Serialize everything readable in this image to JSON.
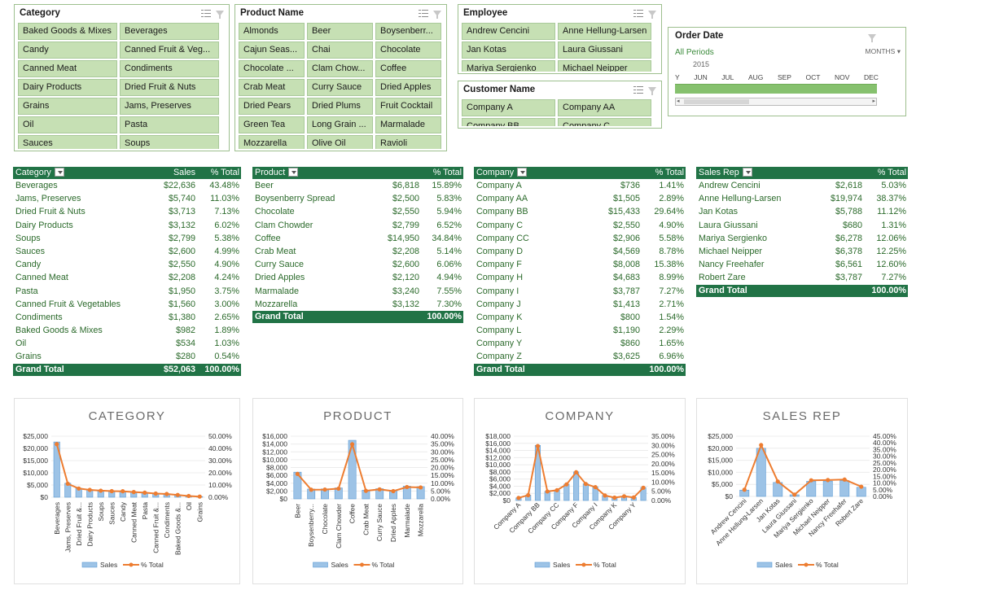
{
  "slicers": {
    "category": {
      "title": "Category",
      "items": [
        "Baked Goods & Mixes",
        "Beverages",
        "Candy",
        "Canned Fruit & Veg...",
        "Canned Meat",
        "Condiments",
        "Dairy Products",
        "Dried Fruit & Nuts",
        "Grains",
        "Jams, Preserves",
        "Oil",
        "Pasta",
        "Sauces",
        "Soups"
      ]
    },
    "product": {
      "title": "Product Name",
      "items": [
        "Almonds",
        "Beer",
        "Boysenberr...",
        "Cajun Seas...",
        "Chai",
        "Chocolate",
        "Chocolate ...",
        "Clam Chow...",
        "Coffee",
        "Crab Meat",
        "Curry Sauce",
        "Dried Apples",
        "Dried Pears",
        "Dried Plums",
        "Fruit Cocktail",
        "Green Tea",
        "Long Grain ...",
        "Marmalade",
        "Mozzarella",
        "Olive Oil",
        "Ravioli"
      ]
    },
    "employee": {
      "title": "Employee",
      "items": [
        "Andrew Cencini",
        "Anne Hellung-Larsen",
        "Jan Kotas",
        "Laura Giussani",
        "Mariya Sergienko",
        "Michael Neipper"
      ]
    },
    "customer": {
      "title": "Customer Name",
      "items": [
        "Company A",
        "Company AA",
        "Company BB",
        "Company C"
      ]
    }
  },
  "timeline": {
    "title": "Order Date",
    "all_periods": "All Periods",
    "level": "MONTHS",
    "year": "2015",
    "months": [
      "Y",
      "JUN",
      "JUL",
      "AUG",
      "SEP",
      "OCT",
      "NOV",
      "DEC"
    ]
  },
  "pivots": {
    "category": {
      "headers": [
        "Category",
        "Sales",
        "% Total"
      ],
      "rows": [
        [
          "Beverages",
          "$22,636",
          "43.48%"
        ],
        [
          "Jams, Preserves",
          "$5,740",
          "11.03%"
        ],
        [
          "Dried Fruit & Nuts",
          "$3,713",
          "7.13%"
        ],
        [
          "Dairy Products",
          "$3,132",
          "6.02%"
        ],
        [
          "Soups",
          "$2,799",
          "5.38%"
        ],
        [
          "Sauces",
          "$2,600",
          "4.99%"
        ],
        [
          "Candy",
          "$2,550",
          "4.90%"
        ],
        [
          "Canned Meat",
          "$2,208",
          "4.24%"
        ],
        [
          "Pasta",
          "$1,950",
          "3.75%"
        ],
        [
          "Canned Fruit & Vegetables",
          "$1,560",
          "3.00%"
        ],
        [
          "Condiments",
          "$1,380",
          "2.65%"
        ],
        [
          "Baked Goods & Mixes",
          "$982",
          "1.89%"
        ],
        [
          "Oil",
          "$534",
          "1.03%"
        ],
        [
          "Grains",
          "$280",
          "0.54%"
        ]
      ],
      "total": [
        "Grand Total",
        "$52,063",
        "100.00%"
      ]
    },
    "product": {
      "headers": [
        "Product",
        "",
        "% Total"
      ],
      "rows": [
        [
          "Beer",
          "$6,818",
          "15.89%"
        ],
        [
          "Boysenberry Spread",
          "$2,500",
          "5.83%"
        ],
        [
          "Chocolate",
          "$2,550",
          "5.94%"
        ],
        [
          "Clam Chowder",
          "$2,799",
          "6.52%"
        ],
        [
          "Coffee",
          "$14,950",
          "34.84%"
        ],
        [
          "Crab Meat",
          "$2,208",
          "5.14%"
        ],
        [
          "Curry Sauce",
          "$2,600",
          "6.06%"
        ],
        [
          "Dried Apples",
          "$2,120",
          "4.94%"
        ],
        [
          "Marmalade",
          "$3,240",
          "7.55%"
        ],
        [
          "Mozzarella",
          "$3,132",
          "7.30%"
        ]
      ],
      "total": [
        "Grand Total",
        "",
        "100.00%"
      ]
    },
    "company": {
      "headers": [
        "Company",
        "",
        "% Total"
      ],
      "rows": [
        [
          "Company A",
          "$736",
          "1.41%"
        ],
        [
          "Company AA",
          "$1,505",
          "2.89%"
        ],
        [
          "Company BB",
          "$15,433",
          "29.64%"
        ],
        [
          "Company C",
          "$2,550",
          "4.90%"
        ],
        [
          "Company CC",
          "$2,906",
          "5.58%"
        ],
        [
          "Company D",
          "$4,569",
          "8.78%"
        ],
        [
          "Company F",
          "$8,008",
          "15.38%"
        ],
        [
          "Company H",
          "$4,683",
          "8.99%"
        ],
        [
          "Company I",
          "$3,787",
          "7.27%"
        ],
        [
          "Company J",
          "$1,413",
          "2.71%"
        ],
        [
          "Company K",
          "$800",
          "1.54%"
        ],
        [
          "Company L",
          "$1,190",
          "2.29%"
        ],
        [
          "Company Y",
          "$860",
          "1.65%"
        ],
        [
          "Company Z",
          "$3,625",
          "6.96%"
        ]
      ],
      "total": [
        "Grand Total",
        "",
        "100.00%"
      ]
    },
    "salesrep": {
      "headers": [
        "Sales Rep",
        "",
        "% Total"
      ],
      "rows": [
        [
          "Andrew Cencini",
          "$2,618",
          "5.03%"
        ],
        [
          "Anne Hellung-Larsen",
          "$19,974",
          "38.37%"
        ],
        [
          "Jan Kotas",
          "$5,788",
          "11.12%"
        ],
        [
          "Laura Giussani",
          "$680",
          "1.31%"
        ],
        [
          "Mariya Sergienko",
          "$6,278",
          "12.06%"
        ],
        [
          "Michael Neipper",
          "$6,378",
          "12.25%"
        ],
        [
          "Nancy Freehafer",
          "$6,561",
          "12.60%"
        ],
        [
          "Robert Zare",
          "$3,787",
          "7.27%"
        ]
      ],
      "total": [
        "Grand Total",
        "",
        "100.00%"
      ]
    }
  },
  "colors": {
    "header_green": "#217346",
    "slicer_green": "#c6e0b4",
    "bar_blue": "#9dc3e6",
    "line_orange": "#ed7d31"
  },
  "chart_data": [
    {
      "type": "bar",
      "title": "CATEGORY",
      "categories": [
        "Beverages",
        "Jams, Preserves",
        "Dried Fruit &...",
        "Dairy Products",
        "Soups",
        "Sauces",
        "Candy",
        "Canned Meat",
        "Pasta",
        "Canned Fruit &...",
        "Condiments",
        "Baked Goods &...",
        "Oil",
        "Grains"
      ],
      "series": [
        {
          "name": "Sales",
          "type": "bar",
          "axis": "left",
          "values": [
            22636,
            5740,
            3713,
            3132,
            2799,
            2600,
            2550,
            2208,
            1950,
            1560,
            1380,
            982,
            534,
            280
          ]
        },
        {
          "name": "% Total",
          "type": "line",
          "axis": "right",
          "values": [
            43.48,
            11.03,
            7.13,
            6.02,
            5.38,
            4.99,
            4.9,
            4.24,
            3.75,
            3.0,
            2.65,
            1.89,
            1.03,
            0.54
          ]
        }
      ],
      "y_left": {
        "min": 0,
        "max": 25000,
        "ticks": [
          "$0",
          "$5,000",
          "$10,000",
          "$15,000",
          "$20,000",
          "$25,000"
        ]
      },
      "y_right": {
        "min": 0,
        "max": 50,
        "ticks": [
          "0.00%",
          "10.00%",
          "20.00%",
          "30.00%",
          "40.00%",
          "50.00%"
        ]
      },
      "legend": [
        "Sales",
        "% Total"
      ]
    },
    {
      "type": "bar",
      "title": "PRODUCT",
      "categories": [
        "Beer",
        "Boysenberry...",
        "Chocolate",
        "Clam Chowder",
        "Coffee",
        "Crab Meat",
        "Curry Sauce",
        "Dried Apples",
        "Marmalade",
        "Mozzarella"
      ],
      "series": [
        {
          "name": "Sales",
          "type": "bar",
          "axis": "left",
          "values": [
            6818,
            2500,
            2550,
            2799,
            14950,
            2208,
            2600,
            2120,
            3240,
            3132
          ]
        },
        {
          "name": "% Total",
          "type": "line",
          "axis": "right",
          "values": [
            15.89,
            5.83,
            5.94,
            6.52,
            34.84,
            5.14,
            6.06,
            4.94,
            7.55,
            7.3
          ]
        }
      ],
      "y_left": {
        "min": 0,
        "max": 16000,
        "ticks": [
          "$0",
          "$2,000",
          "$4,000",
          "$6,000",
          "$8,000",
          "$10,000",
          "$12,000",
          "$14,000",
          "$16,000"
        ]
      },
      "y_right": {
        "min": 0,
        "max": 40,
        "ticks": [
          "0.00%",
          "5.00%",
          "10.00%",
          "15.00%",
          "20.00%",
          "25.00%",
          "30.00%",
          "35.00%",
          "40.00%"
        ]
      },
      "legend": [
        "Sales",
        "% Total"
      ]
    },
    {
      "type": "bar",
      "title": "COMPANY",
      "categories": [
        "Company A",
        "Company AA",
        "Company BB",
        "Company C",
        "Company CC",
        "Company D",
        "Company F",
        "Company H",
        "Company I",
        "Company J",
        "Company K",
        "Company L",
        "Company Y",
        "Company Z"
      ],
      "x_tick_labels": [
        "Company A",
        "",
        "Company BB",
        "",
        "Company CC",
        "",
        "Company F",
        "",
        "Company I",
        "",
        "Company K",
        "",
        "Company Y",
        ""
      ],
      "series": [
        {
          "name": "Sales",
          "type": "bar",
          "axis": "left",
          "values": [
            736,
            1505,
            15433,
            2550,
            2906,
            4569,
            8008,
            4683,
            3787,
            1413,
            800,
            1190,
            860,
            3625
          ]
        },
        {
          "name": "% Total",
          "type": "line",
          "axis": "right",
          "values": [
            1.41,
            2.89,
            29.64,
            4.9,
            5.58,
            8.78,
            15.38,
            8.99,
            7.27,
            2.71,
            1.54,
            2.29,
            1.65,
            6.96
          ]
        }
      ],
      "y_left": {
        "min": 0,
        "max": 18000,
        "ticks": [
          "$0",
          "$2,000",
          "$4,000",
          "$6,000",
          "$8,000",
          "$10,000",
          "$12,000",
          "$14,000",
          "$16,000",
          "$18,000"
        ]
      },
      "y_right": {
        "min": 0,
        "max": 35,
        "ticks": [
          "0.00%",
          "5.00%",
          "10.00%",
          "15.00%",
          "20.00%",
          "25.00%",
          "30.00%",
          "35.00%"
        ]
      },
      "legend": [
        "Sales",
        "% Total"
      ]
    },
    {
      "type": "bar",
      "title": "SALES REP",
      "categories": [
        "Andrew Cencini",
        "Anne Hellung-Larsen",
        "Jan Kotas",
        "Laura Giussani",
        "Mariya Sergienko",
        "Michael Neipper",
        "Nancy Freehafer",
        "Robert Zare"
      ],
      "series": [
        {
          "name": "Sales",
          "type": "bar",
          "axis": "left",
          "values": [
            2618,
            19974,
            5788,
            680,
            6278,
            6378,
            6561,
            3787
          ]
        },
        {
          "name": "% Total",
          "type": "line",
          "axis": "right",
          "values": [
            5.03,
            38.37,
            11.12,
            1.31,
            12.06,
            12.25,
            12.6,
            7.27
          ]
        }
      ],
      "y_left": {
        "min": 0,
        "max": 25000,
        "ticks": [
          "$0",
          "$5,000",
          "$10,000",
          "$15,000",
          "$20,000",
          "$25,000"
        ]
      },
      "y_right": {
        "min": 0,
        "max": 45,
        "ticks": [
          "0.00%",
          "5.00%",
          "10.00%",
          "15.00%",
          "20.00%",
          "25.00%",
          "30.00%",
          "35.00%",
          "40.00%",
          "45.00%"
        ]
      },
      "legend": [
        "Sales",
        "% Total"
      ]
    }
  ]
}
